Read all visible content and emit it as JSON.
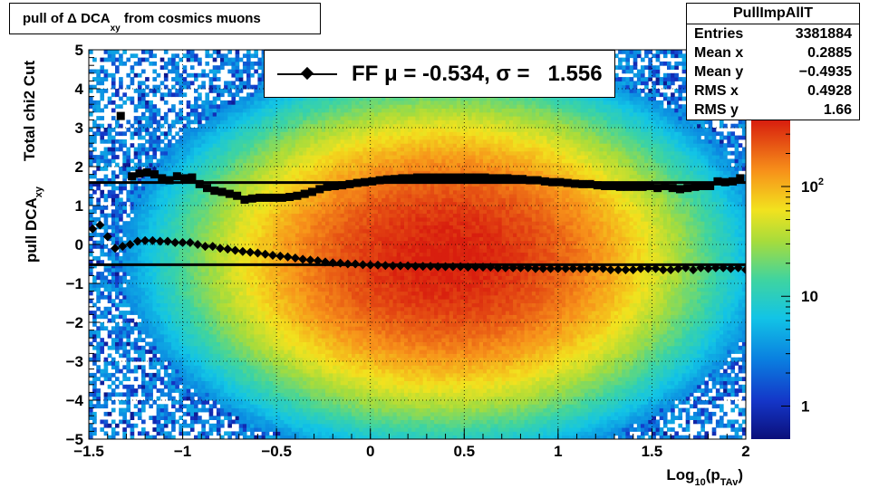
{
  "title": {
    "prefix": "pull of ",
    "delta": "Δ",
    "main": " DCA",
    "sub": "xy",
    "suffix": " from cosmics muons"
  },
  "stats": {
    "name": "PullImpAllT",
    "rows": [
      {
        "label": "Entries",
        "value": "3381884"
      },
      {
        "label": "Mean x",
        "value": "0.2885"
      },
      {
        "label": "Mean y",
        "value": "−0.4935"
      },
      {
        "label": "RMS x",
        "value": "0.4928"
      },
      {
        "label": "RMS y",
        "value": "1.66"
      }
    ]
  },
  "legend": {
    "text": "FF μ = -0.534, σ =   1.556"
  },
  "axes": {
    "x_label_main": "Log",
    "x_label_sub1": "10",
    "x_label_mid": "(p",
    "x_label_sub2": "TAv",
    "x_label_end": ")",
    "y_label_line1": "Total chi2 Cut",
    "y_label_line2_main": "pull DCA",
    "y_label_line2_sub": "xy",
    "x_ticks": [
      "−1.5",
      "−1",
      "−0.5",
      "0",
      "0.5",
      "1",
      "1.5",
      "2"
    ],
    "y_ticks": [
      "−5",
      "−4",
      "−3",
      "−2",
      "−1",
      "0",
      "1",
      "2",
      "3",
      "4",
      "5"
    ],
    "z_ticks": [
      {
        "base": "1",
        "exp": ""
      },
      {
        "base": "10",
        "exp": ""
      },
      {
        "base": "10",
        "exp": "2"
      }
    ]
  },
  "chart_data": {
    "type": "heatmap",
    "xlim": [
      -1.5,
      2
    ],
    "ylim": [
      -5,
      5
    ],
    "zscale": "log",
    "zlim": [
      0.5,
      400
    ],
    "grid": true,
    "legend_placement": "top-center",
    "distribution": {
      "x_center": 0.4,
      "y_center": -0.35,
      "x_sigma": 0.55,
      "y_sigma": 1.7
    },
    "fit_lines": [
      {
        "y": 1.59
      },
      {
        "y": -0.52
      }
    ],
    "series": [
      {
        "marker": "square",
        "x": [
          -1.33,
          -1.27,
          -1.23,
          -1.19,
          -1.15,
          -1.11,
          -1.07,
          -1.03,
          -0.99,
          -0.95,
          -0.91,
          -0.87,
          -0.83,
          -0.79,
          -0.75,
          -0.71,
          -0.67,
          -0.63,
          -0.59,
          -0.55,
          -0.51,
          -0.47,
          -0.43,
          -0.39,
          -0.35,
          -0.31,
          -0.27,
          -0.23,
          -0.19,
          -0.15,
          -0.11,
          -0.07,
          -0.03,
          0.01,
          0.05,
          0.09,
          0.13,
          0.17,
          0.21,
          0.25,
          0.29,
          0.33,
          0.37,
          0.41,
          0.45,
          0.49,
          0.53,
          0.57,
          0.61,
          0.65,
          0.69,
          0.73,
          0.77,
          0.81,
          0.85,
          0.89,
          0.93,
          0.97,
          1.01,
          1.05,
          1.09,
          1.13,
          1.17,
          1.21,
          1.25,
          1.29,
          1.33,
          1.37,
          1.41,
          1.45,
          1.49,
          1.53,
          1.57,
          1.61,
          1.65,
          1.69,
          1.73,
          1.77,
          1.81,
          1.85,
          1.89,
          1.93,
          1.97
        ],
        "y": [
          3.3,
          1.75,
          1.82,
          1.85,
          1.8,
          1.7,
          1.65,
          1.75,
          1.7,
          1.72,
          1.55,
          1.45,
          1.38,
          1.35,
          1.3,
          1.25,
          1.15,
          1.18,
          1.2,
          1.2,
          1.2,
          1.2,
          1.22,
          1.25,
          1.3,
          1.35,
          1.42,
          1.48,
          1.5,
          1.52,
          1.55,
          1.58,
          1.6,
          1.62,
          1.65,
          1.67,
          1.68,
          1.7,
          1.7,
          1.72,
          1.72,
          1.72,
          1.72,
          1.72,
          1.72,
          1.72,
          1.72,
          1.72,
          1.72,
          1.7,
          1.7,
          1.7,
          1.68,
          1.68,
          1.65,
          1.65,
          1.62,
          1.6,
          1.6,
          1.58,
          1.56,
          1.55,
          1.55,
          1.52,
          1.5,
          1.5,
          1.48,
          1.48,
          1.48,
          1.48,
          1.5,
          1.45,
          1.5,
          1.45,
          1.42,
          1.45,
          1.48,
          1.5,
          1.5,
          1.62,
          1.6,
          1.62,
          1.7
        ]
      },
      {
        "marker": "diamond",
        "x": [
          -1.48,
          -1.44,
          -1.4,
          -1.36,
          -1.32,
          -1.28,
          -1.24,
          -1.2,
          -1.16,
          -1.12,
          -1.08,
          -1.04,
          -1.0,
          -0.96,
          -0.92,
          -0.88,
          -0.84,
          -0.8,
          -0.76,
          -0.72,
          -0.68,
          -0.64,
          -0.6,
          -0.56,
          -0.52,
          -0.48,
          -0.44,
          -0.4,
          -0.36,
          -0.32,
          -0.28,
          -0.24,
          -0.2,
          -0.16,
          -0.12,
          -0.08,
          -0.04,
          0.0,
          0.04,
          0.08,
          0.12,
          0.16,
          0.2,
          0.24,
          0.28,
          0.32,
          0.36,
          0.4,
          0.44,
          0.48,
          0.52,
          0.56,
          0.6,
          0.64,
          0.68,
          0.72,
          0.76,
          0.8,
          0.84,
          0.88,
          0.92,
          0.96,
          1.0,
          1.04,
          1.08,
          1.12,
          1.16,
          1.2,
          1.24,
          1.28,
          1.32,
          1.36,
          1.4,
          1.44,
          1.48,
          1.52,
          1.56,
          1.6,
          1.64,
          1.68,
          1.72,
          1.76,
          1.8,
          1.84,
          1.88,
          1.92,
          1.96,
          2.0
        ],
        "y": [
          0.4,
          0.5,
          0.2,
          -0.1,
          -0.05,
          0.0,
          0.08,
          0.1,
          0.1,
          0.08,
          0.08,
          0.05,
          0.05,
          0.05,
          0.0,
          -0.05,
          -0.05,
          -0.1,
          -0.12,
          -0.15,
          -0.18,
          -0.2,
          -0.22,
          -0.25,
          -0.28,
          -0.3,
          -0.32,
          -0.35,
          -0.38,
          -0.4,
          -0.42,
          -0.45,
          -0.47,
          -0.48,
          -0.5,
          -0.5,
          -0.52,
          -0.53,
          -0.53,
          -0.54,
          -0.55,
          -0.55,
          -0.55,
          -0.56,
          -0.56,
          -0.56,
          -0.57,
          -0.57,
          -0.57,
          -0.57,
          -0.58,
          -0.58,
          -0.58,
          -0.58,
          -0.6,
          -0.6,
          -0.6,
          -0.6,
          -0.6,
          -0.62,
          -0.62,
          -0.62,
          -0.62,
          -0.62,
          -0.62,
          -0.62,
          -0.62,
          -0.62,
          -0.62,
          -0.65,
          -0.65,
          -0.65,
          -0.65,
          -0.62,
          -0.62,
          -0.62,
          -0.65,
          -0.65,
          -0.62,
          -0.6,
          -0.65,
          -0.6,
          -0.62,
          -0.6,
          -0.6,
          -0.62,
          -0.6,
          -0.65
        ]
      }
    ]
  }
}
